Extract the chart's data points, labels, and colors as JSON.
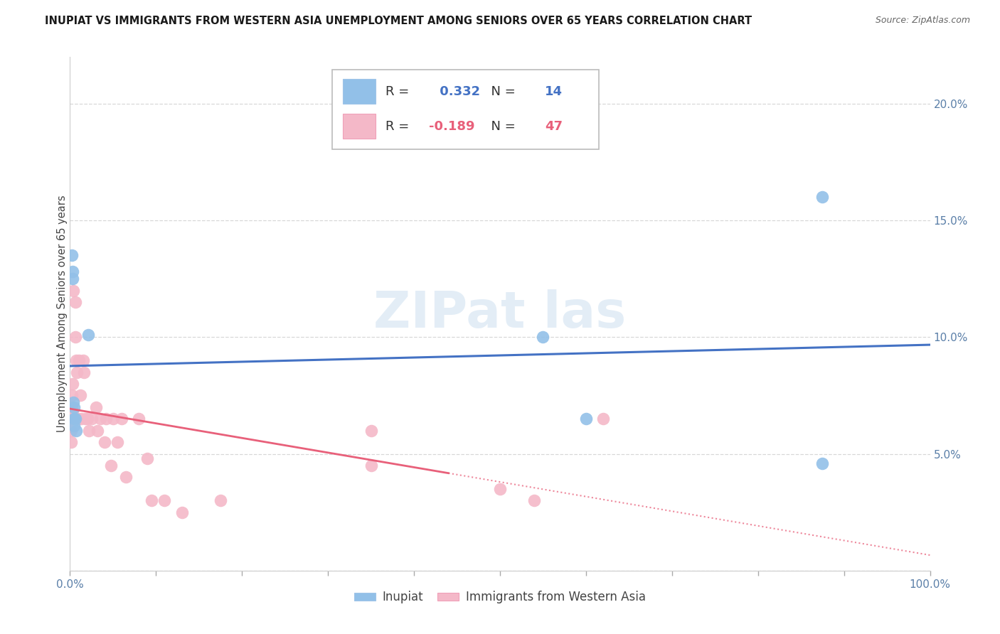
{
  "title": "INUPIAT VS IMMIGRANTS FROM WESTERN ASIA UNEMPLOYMENT AMONG SENIORS OVER 65 YEARS CORRELATION CHART",
  "source": "Source: ZipAtlas.com",
  "ylabel": "Unemployment Among Seniors over 65 years",
  "xlim": [
    0.0,
    1.0
  ],
  "ylim": [
    0.0,
    0.22
  ],
  "xticks": [
    0.0,
    0.1,
    0.2,
    0.3,
    0.4,
    0.5,
    0.6,
    0.7,
    0.8,
    0.9,
    1.0
  ],
  "xticklabels": [
    "0.0%",
    "",
    "",
    "",
    "",
    "",
    "",
    "",
    "",
    "",
    "100.0%"
  ],
  "yticks": [
    0.0,
    0.05,
    0.1,
    0.15,
    0.2
  ],
  "yticklabels": [
    "",
    "5.0%",
    "10.0%",
    "15.0%",
    "20.0%"
  ],
  "inupiat_color": "#92c0e8",
  "western_asia_color": "#f4b8c8",
  "inupiat_line_color": "#4472c4",
  "western_asia_line_color": "#e8607a",
  "R_inupiat": 0.332,
  "N_inupiat": 14,
  "R_western_asia": -0.189,
  "N_western_asia": 47,
  "inupiat_x": [
    0.002,
    0.003,
    0.003,
    0.004,
    0.005,
    0.005,
    0.005,
    0.006,
    0.007,
    0.021,
    0.55,
    0.6,
    0.875,
    0.875
  ],
  "inupiat_y": [
    0.135,
    0.128,
    0.125,
    0.072,
    0.07,
    0.065,
    0.062,
    0.065,
    0.06,
    0.101,
    0.1,
    0.065,
    0.16,
    0.046
  ],
  "western_asia_x": [
    0.0,
    0.001,
    0.001,
    0.001,
    0.001,
    0.001,
    0.002,
    0.002,
    0.002,
    0.003,
    0.003,
    0.004,
    0.006,
    0.006,
    0.007,
    0.008,
    0.009,
    0.01,
    0.012,
    0.013,
    0.015,
    0.016,
    0.018,
    0.02,
    0.022,
    0.025,
    0.03,
    0.032,
    0.035,
    0.04,
    0.042,
    0.048,
    0.05,
    0.055,
    0.06,
    0.065,
    0.08,
    0.09,
    0.095,
    0.11,
    0.13,
    0.175,
    0.35,
    0.35,
    0.5,
    0.54,
    0.62
  ],
  "western_asia_y": [
    0.068,
    0.07,
    0.068,
    0.065,
    0.06,
    0.055,
    0.075,
    0.07,
    0.065,
    0.08,
    0.068,
    0.12,
    0.115,
    0.1,
    0.09,
    0.085,
    0.065,
    0.09,
    0.075,
    0.065,
    0.09,
    0.085,
    0.065,
    0.065,
    0.06,
    0.065,
    0.07,
    0.06,
    0.065,
    0.055,
    0.065,
    0.045,
    0.065,
    0.055,
    0.065,
    0.04,
    0.065,
    0.048,
    0.03,
    0.03,
    0.025,
    0.03,
    0.06,
    0.045,
    0.035,
    0.03,
    0.065
  ],
  "western_asia_line_split": 0.44,
  "figsize": [
    14.06,
    8.92
  ],
  "dpi": 100
}
